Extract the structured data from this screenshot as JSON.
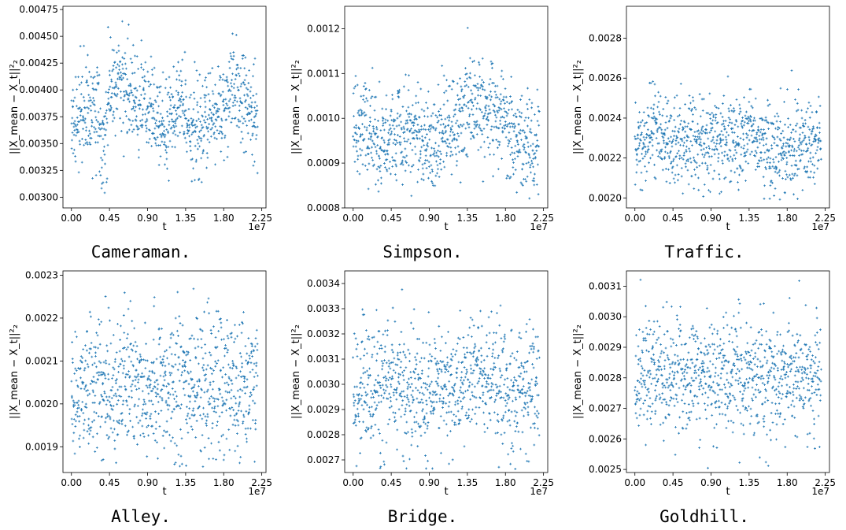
{
  "ylabel": "||X_mean − X_t||²₂",
  "chart_data": [
    {
      "type": "scatter",
      "caption": "Cameraman.",
      "xlabel": "t",
      "x_offset_label": "1e7",
      "xlim": [
        -0.1,
        2.3
      ],
      "ylim": [
        0.0029,
        0.00478
      ],
      "xticks": [
        "0.00",
        "0.45",
        "0.90",
        "1.35",
        "1.80",
        "2.25"
      ],
      "yticks": [
        "0.00300",
        "0.00325",
        "0.00350",
        "0.00375",
        "0.00400",
        "0.00425",
        "0.00450",
        "0.00475"
      ],
      "color": "#1f77b4",
      "series": [
        {
          "x": [
            0.0,
            0.15,
            0.3,
            0.38,
            0.45,
            0.52,
            0.6,
            0.75,
            0.9,
            1.05,
            1.2,
            1.3,
            1.35,
            1.45,
            1.6,
            1.75,
            1.85,
            1.95,
            2.1,
            2.2
          ],
          "y": [
            0.0037,
            0.0038,
            0.00385,
            0.0035,
            0.004,
            0.00405,
            0.0041,
            0.0039,
            0.0038,
            0.00365,
            0.0037,
            0.0039,
            0.0038,
            0.0036,
            0.0037,
            0.0038,
            0.0039,
            0.004,
            0.0038,
            0.0037
          ],
          "spread": 0.00022,
          "bounds": [
            0.00295,
            0.00468
          ]
        }
      ]
    },
    {
      "type": "scatter",
      "caption": "Simpson.",
      "xlabel": "t",
      "x_offset_label": "1e7",
      "xlim": [
        -0.1,
        2.3
      ],
      "ylim": [
        0.0008,
        0.00125
      ],
      "xticks": [
        "0.00",
        "0.45",
        "0.90",
        "1.35",
        "1.80",
        "2.25"
      ],
      "yticks": [
        "0.0008",
        "0.0009",
        "0.0010",
        "0.0011",
        "0.0012"
      ],
      "color": "#1f77b4",
      "series": [
        {
          "x": [
            0.0,
            0.15,
            0.3,
            0.45,
            0.6,
            0.75,
            0.9,
            1.05,
            1.2,
            1.35,
            1.5,
            1.65,
            1.8,
            1.95,
            2.1,
            2.2
          ],
          "y": [
            0.00097,
            0.00096,
            0.00095,
            0.00096,
            0.00097,
            0.00095,
            0.00094,
            0.00096,
            0.00098,
            0.00102,
            0.00103,
            0.00101,
            0.00099,
            0.00095,
            0.00094,
            0.00095
          ],
          "spread": 5.5e-05,
          "bounds": [
            0.00082,
            0.00124
          ]
        }
      ]
    },
    {
      "type": "scatter",
      "caption": "Traffic.",
      "xlabel": "t",
      "x_offset_label": "1e7",
      "xlim": [
        -0.1,
        2.3
      ],
      "ylim": [
        0.00195,
        0.00296
      ],
      "xticks": [
        "0.00",
        "0.45",
        "0.90",
        "1.35",
        "1.80",
        "2.25"
      ],
      "yticks": [
        "0.0020",
        "0.0022",
        "0.0024",
        "0.0026",
        "0.0028"
      ],
      "color": "#1f77b4",
      "series": [
        {
          "x": [
            0.0,
            0.15,
            0.25,
            0.35,
            0.45,
            0.6,
            0.75,
            0.9,
            1.05,
            1.2,
            1.35,
            1.5,
            1.65,
            1.8,
            1.95,
            2.1,
            2.2
          ],
          "y": [
            0.00225,
            0.00228,
            0.0024,
            0.0023,
            0.00228,
            0.00226,
            0.00228,
            0.00227,
            0.00229,
            0.00227,
            0.00232,
            0.00228,
            0.00227,
            0.00226,
            0.00227,
            0.00226,
            0.00228
          ],
          "spread": 0.00011,
          "bounds": [
            0.00198,
            0.00293
          ]
        }
      ]
    },
    {
      "type": "scatter",
      "caption": "Alley.",
      "xlabel": "t",
      "x_offset_label": "1e7",
      "xlim": [
        -0.1,
        2.3
      ],
      "ylim": [
        0.00184,
        0.00231
      ],
      "xticks": [
        "0.00",
        "0.45",
        "0.90",
        "1.35",
        "1.80",
        "2.25"
      ],
      "yticks": [
        "0.0019",
        "0.0020",
        "0.0021",
        "0.0022",
        "0.0023"
      ],
      "color": "#1f77b4",
      "series": [
        {
          "x": [
            0.0,
            0.45,
            0.9,
            1.35,
            1.8,
            2.2
          ],
          "y": [
            0.00205,
            0.00205,
            0.00205,
            0.00205,
            0.00205,
            0.00205
          ],
          "spread": 8e-05,
          "bounds": [
            0.00185,
            0.0023
          ]
        }
      ]
    },
    {
      "type": "scatter",
      "caption": "Bridge.",
      "xlabel": "t",
      "x_offset_label": "1e7",
      "xlim": [
        -0.1,
        2.3
      ],
      "ylim": [
        0.00265,
        0.00345
      ],
      "xticks": [
        "0.00",
        "0.45",
        "0.90",
        "1.35",
        "1.80",
        "2.25"
      ],
      "yticks": [
        "0.0027",
        "0.0028",
        "0.0029",
        "0.0030",
        "0.0031",
        "0.0032",
        "0.0033",
        "0.0034"
      ],
      "color": "#1f77b4",
      "series": [
        {
          "x": [
            0.0,
            0.15,
            0.3,
            0.45,
            0.6,
            0.75,
            0.9,
            1.05,
            1.2,
            1.35,
            1.45,
            1.55,
            1.7,
            1.85,
            2.0,
            2.2
          ],
          "y": [
            0.00298,
            0.003,
            0.00299,
            0.00302,
            0.00298,
            0.00297,
            0.00296,
            0.00297,
            0.00298,
            0.00301,
            0.00306,
            0.00302,
            0.00298,
            0.00297,
            0.00298,
            0.003
          ],
          "spread": 0.00012,
          "bounds": [
            0.00266,
            0.00343
          ]
        }
      ]
    },
    {
      "type": "scatter",
      "caption": "Goldhill.",
      "xlabel": "t",
      "x_offset_label": "1e7",
      "xlim": [
        -0.1,
        2.3
      ],
      "ylim": [
        0.00249,
        0.00315
      ],
      "xticks": [
        "0.00",
        "0.45",
        "0.90",
        "1.35",
        "1.80",
        "2.25"
      ],
      "yticks": [
        "0.0025",
        "0.0026",
        "0.0027",
        "0.0028",
        "0.0029",
        "0.0030",
        "0.0031"
      ],
      "color": "#1f77b4",
      "series": [
        {
          "x": [
            0.0,
            0.45,
            0.9,
            1.35,
            1.8,
            2.2
          ],
          "y": [
            0.0028,
            0.00281,
            0.0028,
            0.00281,
            0.0028,
            0.0028
          ],
          "spread": 9.5e-05,
          "bounds": [
            0.0025,
            0.00314
          ]
        }
      ]
    }
  ]
}
